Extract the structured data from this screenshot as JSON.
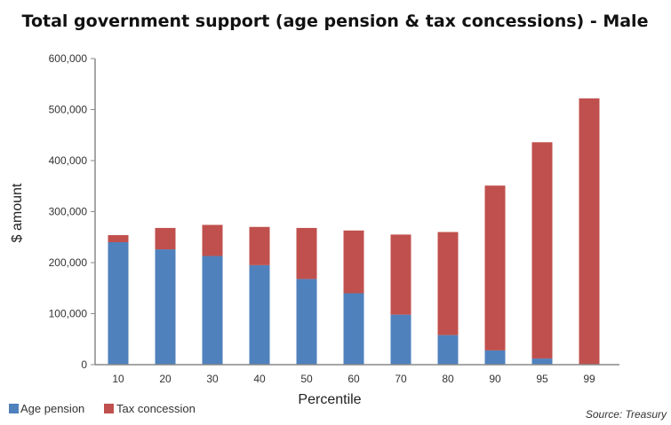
{
  "chart_data": {
    "type": "bar",
    "stacked": true,
    "title": "Total government support (age pension & tax concessions) - Male",
    "xlabel": "Percentile",
    "ylabel": "$ amount",
    "ylim": [
      0,
      600000
    ],
    "yticks": [
      0,
      100000,
      200000,
      300000,
      400000,
      500000,
      600000
    ],
    "ytick_labels": [
      "0",
      "100,000",
      "200,000",
      "300,000",
      "400,000",
      "500,000",
      "600,000"
    ],
    "categories": [
      "10",
      "20",
      "30",
      "40",
      "50",
      "60",
      "70",
      "80",
      "90",
      "95",
      "99"
    ],
    "series": [
      {
        "name": "Age pension",
        "color": "#4f81bd",
        "values": [
          240000,
          226000,
          213000,
          195000,
          168000,
          140000,
          98000,
          58000,
          28000,
          12000,
          0
        ]
      },
      {
        "name": "Tax concession",
        "color": "#c0504d",
        "values": [
          14000,
          42000,
          61000,
          75000,
          100000,
          123000,
          157000,
          202000,
          323000,
          424000,
          522000
        ]
      }
    ],
    "grid": false,
    "legend": "bottom-left",
    "source": "Source: Treasury"
  }
}
